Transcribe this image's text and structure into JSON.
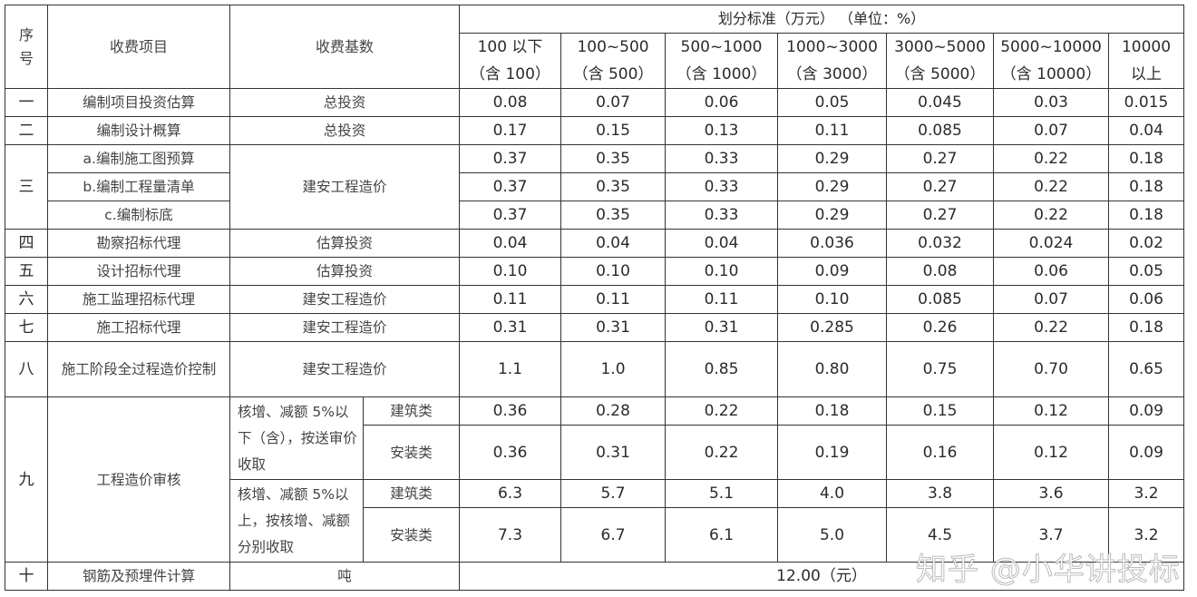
{
  "header": {
    "seq": "序号",
    "item": "收费项目",
    "base": "收费基数",
    "standard": "划分标准（万元） （单位：%）",
    "ranges": [
      [
        "100 以下",
        "（含 100）"
      ],
      [
        "100~500",
        "（含 500）"
      ],
      [
        "500~1000",
        "（含 1000）"
      ],
      [
        "1000~3000",
        "（含 3000）"
      ],
      [
        "3000~5000",
        "（含 5000）"
      ],
      [
        "5000~10000",
        "（含 10000）"
      ],
      [
        "10000",
        "以上"
      ]
    ]
  },
  "rows": [
    {
      "seq": "一",
      "item": "编制项目投资估算",
      "base": "总投资",
      "values": [
        "0.08",
        "0.07",
        "0.06",
        "0.05",
        "0.045",
        "0.03",
        "0.015"
      ]
    },
    {
      "seq": "二",
      "item": "编制设计概算",
      "base": "总投资",
      "values": [
        "0.17",
        "0.15",
        "0.13",
        "0.11",
        "0.085",
        "0.07",
        "0.04"
      ]
    },
    {
      "seq": "三",
      "item": "a.编制施工图预算",
      "base": "建安工程造价",
      "values": [
        "0.37",
        "0.35",
        "0.33",
        "0.29",
        "0.27",
        "0.22",
        "0.18"
      ]
    },
    {
      "seq": "",
      "item": "b.编制工程量清单",
      "base": "",
      "values": [
        "0.37",
        "0.35",
        "0.33",
        "0.29",
        "0.27",
        "0.22",
        "0.18"
      ]
    },
    {
      "seq": "",
      "item": "c.编制标底",
      "base": "",
      "values": [
        "0.37",
        "0.35",
        "0.33",
        "0.29",
        "0.27",
        "0.22",
        "0.18"
      ]
    },
    {
      "seq": "四",
      "item": "勘察招标代理",
      "base": "估算投资",
      "values": [
        "0.04",
        "0.04",
        "0.04",
        "0.036",
        "0.032",
        "0.024",
        "0.02"
      ]
    },
    {
      "seq": "五",
      "item": "设计招标代理",
      "base": "估算投资",
      "values": [
        "0.10",
        "0.10",
        "0.10",
        "0.09",
        "0.08",
        "0.06",
        "0.05"
      ]
    },
    {
      "seq": "六",
      "item": "施工监理招标代理",
      "base": "建安工程造价",
      "values": [
        "0.11",
        "0.11",
        "0.11",
        "0.10",
        "0.085",
        "0.07",
        "0.06"
      ]
    },
    {
      "seq": "七",
      "item": "施工招标代理",
      "base": "建安工程造价",
      "values": [
        "0.31",
        "0.31",
        "0.31",
        "0.285",
        "0.26",
        "0.22",
        "0.18"
      ]
    },
    {
      "seq": "八",
      "item": "施工阶段全过程造价控制",
      "base": "建安工程造价",
      "values": [
        "1.1",
        "1.0",
        "0.85",
        "0.80",
        "0.75",
        "0.70",
        "0.65"
      ]
    }
  ],
  "review": {
    "seq": "九",
    "item": "工程造价审核",
    "conditions": [
      "核增、减额 5%以下（含），按送审价收取",
      "核增、减额 5%以上，按核增、减额分别收取"
    ],
    "sub": [
      {
        "type": "建筑类",
        "values": [
          "0.36",
          "0.28",
          "0.22",
          "0.18",
          "0.15",
          "0.12",
          "0.09"
        ]
      },
      {
        "type": "安装类",
        "values": [
          "0.36",
          "0.31",
          "0.22",
          "0.19",
          "0.16",
          "0.12",
          "0.09"
        ]
      },
      {
        "type": "建筑类",
        "values": [
          "6.3",
          "5.7",
          "5.1",
          "4.0",
          "3.8",
          "3.6",
          "3.2"
        ]
      },
      {
        "type": "安装类",
        "values": [
          "7.3",
          "6.7",
          "6.1",
          "5.0",
          "4.5",
          "3.7",
          "3.2"
        ]
      }
    ]
  },
  "last": {
    "seq": "十",
    "item": "钢筋及预埋件计算",
    "base": "吨",
    "value": "12.00（元）"
  },
  "watermark": "知乎 @小华讲投标"
}
